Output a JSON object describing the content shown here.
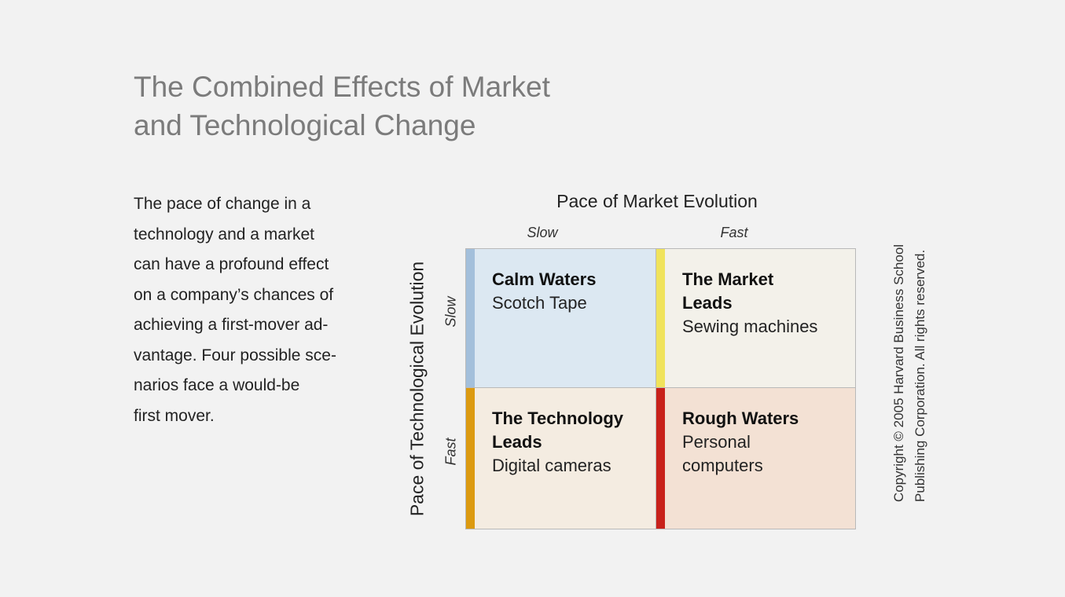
{
  "title": {
    "line1": "The Combined Effects of Market",
    "line2": "and Technological Change"
  },
  "intro_lines": [
    "The pace of change in a",
    "technology and a market",
    "can have a profound effect",
    "on a company’s chances of",
    "achieving a first-mover ad-",
    "vantage. Four possible sce-",
    "narios face a would-be",
    "first mover."
  ],
  "matrix": {
    "x_axis": {
      "title": "Pace of Market Evolution",
      "ticks": [
        "Slow",
        "Fast"
      ]
    },
    "y_axis": {
      "title": "Pace of Technological  Evolution",
      "ticks": [
        "Slow",
        "Fast"
      ]
    },
    "cells": {
      "top_left": {
        "name": "Calm Waters",
        "example": "Scotch Tape",
        "accent": "#a3bfdb"
      },
      "top_right": {
        "name_line1": "The Market",
        "name_line2": "Leads",
        "example": "Sewing machines",
        "accent": "#f0e35c"
      },
      "bottom_left": {
        "name_line1": "The Technology",
        "name_line2": "Leads",
        "example": "Digital cameras",
        "accent": "#dc9a10"
      },
      "bottom_right": {
        "name": "Rough Waters",
        "example_line1": "Personal",
        "example_line2": "computers",
        "accent": "#c8211a"
      }
    }
  },
  "copyright": {
    "line1": "Copyright © 2005 Harvard Business School",
    "line2": "Publishing Corporation. All rights reserved."
  }
}
